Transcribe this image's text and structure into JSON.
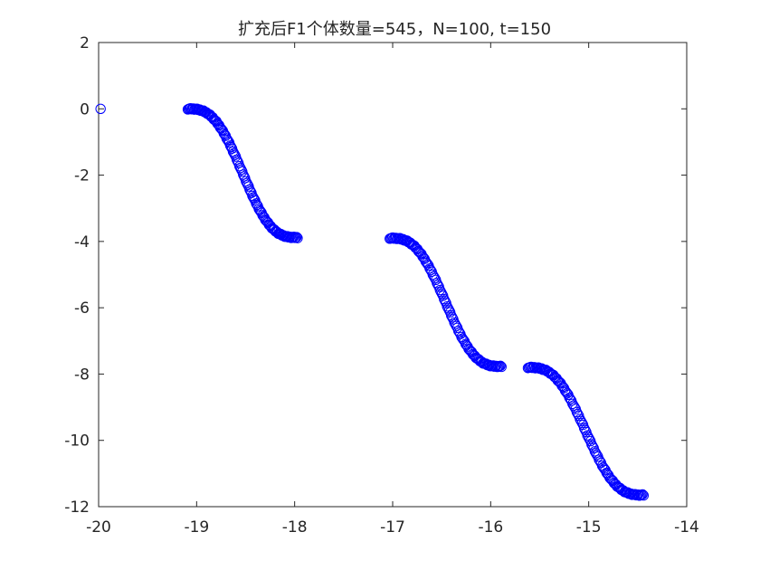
{
  "chart_data": {
    "type": "scatter",
    "title": "扩充后F1个体数量=545，N=100, t=150",
    "xlabel": "",
    "ylabel": "",
    "xlim": [
      -20,
      -14
    ],
    "ylim": [
      -12,
      2
    ],
    "xticks": [
      -20,
      -19,
      -18,
      -17,
      -16,
      -15,
      -14
    ],
    "yticks": [
      2,
      0,
      -2,
      -4,
      -6,
      -8,
      -10,
      -12
    ],
    "xtick_labels": [
      "-20",
      "-19",
      "-18",
      "-17",
      "-16",
      "-15",
      "-14"
    ],
    "ytick_labels": [
      "2",
      "0",
      "-2",
      "-4",
      "-6",
      "-8",
      "-10",
      "-12"
    ],
    "grid": false,
    "marker": "open-circle",
    "marker_color": "#0000ff",
    "axis_color": "#262626",
    "segments": [
      {
        "x_start": -19.09,
        "x_end": -17.97,
        "y_start": 0.0,
        "y_end": -3.88,
        "points": 120
      },
      {
        "x_start": -17.03,
        "x_end": -15.89,
        "y_start": -3.9,
        "y_end": -7.77,
        "points": 110
      },
      {
        "x_start": -15.62,
        "x_end": -14.44,
        "y_start": -7.8,
        "y_end": -11.65,
        "points": 110
      }
    ],
    "isolated_points": [
      {
        "x": -19.98,
        "y": 0.0
      }
    ]
  }
}
